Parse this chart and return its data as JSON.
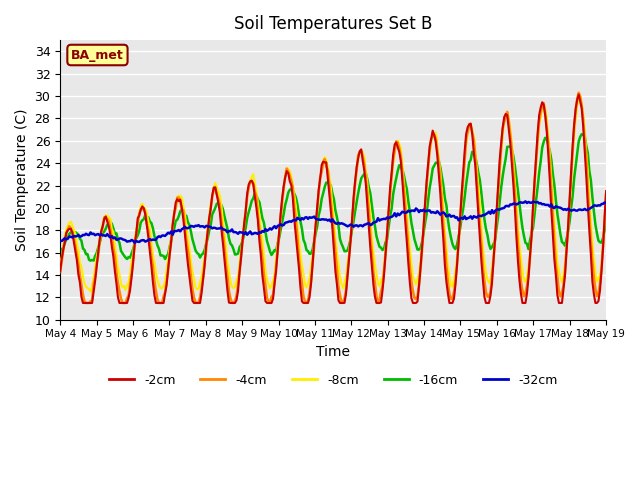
{
  "title": "Soil Temperatures Set B",
  "xlabel": "Time",
  "ylabel": "Soil Temperature (C)",
  "ylim": [
    10,
    35
  ],
  "yticks": [
    10,
    12,
    14,
    16,
    18,
    20,
    22,
    24,
    26,
    28,
    30,
    32,
    34
  ],
  "plot_bg_color": "#e8e8e8",
  "label_box_text": "BA_met",
  "series": {
    "-2cm": {
      "color": "#cc0000",
      "lw": 1.5
    },
    "-4cm": {
      "color": "#ff8800",
      "lw": 1.8
    },
    "-8cm": {
      "color": "#ffee00",
      "lw": 1.5
    },
    "-16cm": {
      "color": "#00bb00",
      "lw": 1.8
    },
    "-32cm": {
      "color": "#0000cc",
      "lw": 1.8
    }
  },
  "xtick_labels": [
    "May 4",
    "May 5",
    "May 6",
    "May 7",
    "May 8",
    "May 9",
    "May 10",
    "May 11",
    "May 12",
    "May 13",
    "May 14",
    "May 15",
    "May 16",
    "May 17",
    "May 18",
    "May 19"
  ]
}
